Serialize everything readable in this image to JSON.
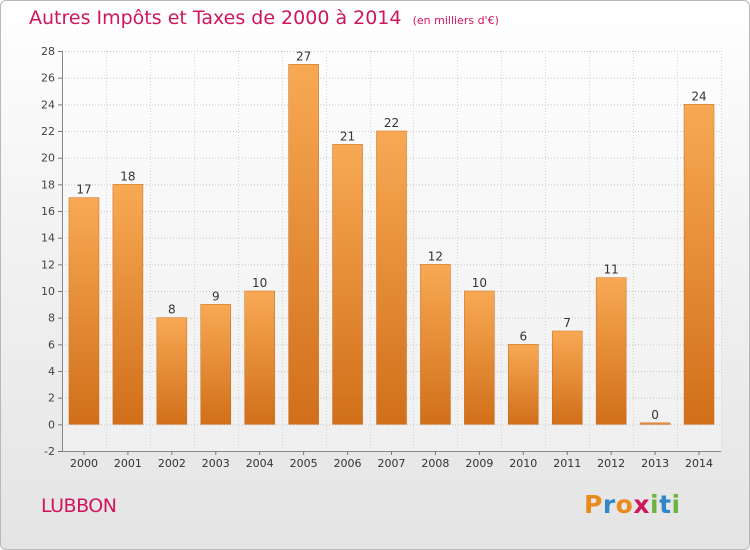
{
  "chart_data": {
    "type": "bar",
    "title": "Autres Impôts et Taxes de 2000 à 2014",
    "subtitle": "(en milliers d'€)",
    "categories": [
      "2000",
      "2001",
      "2002",
      "2003",
      "2004",
      "2005",
      "2006",
      "2007",
      "2008",
      "2009",
      "2010",
      "2011",
      "2012",
      "2013",
      "2014"
    ],
    "values": [
      17,
      18,
      8,
      9,
      10,
      27,
      21,
      22,
      12,
      10,
      6,
      7,
      11,
      0,
      24
    ],
    "ylim": [
      -2,
      28
    ],
    "yticks": [
      -2,
      0,
      2,
      4,
      6,
      8,
      10,
      12,
      14,
      16,
      18,
      20,
      22,
      24,
      26,
      28
    ],
    "grid": true,
    "bar_color_light": "#f8a954",
    "bar_color_dark": "#d16f1a"
  },
  "footer": {
    "commune": "LUBBON",
    "brand": {
      "letters": [
        "P",
        "r",
        "o",
        "x",
        "i",
        "t",
        "i"
      ],
      "colors": [
        "#e98a1c",
        "#2f86c8",
        "#e98a1c",
        "#d0155c",
        "#6cb33f",
        "#2f86c8",
        "#6cb33f"
      ]
    }
  }
}
